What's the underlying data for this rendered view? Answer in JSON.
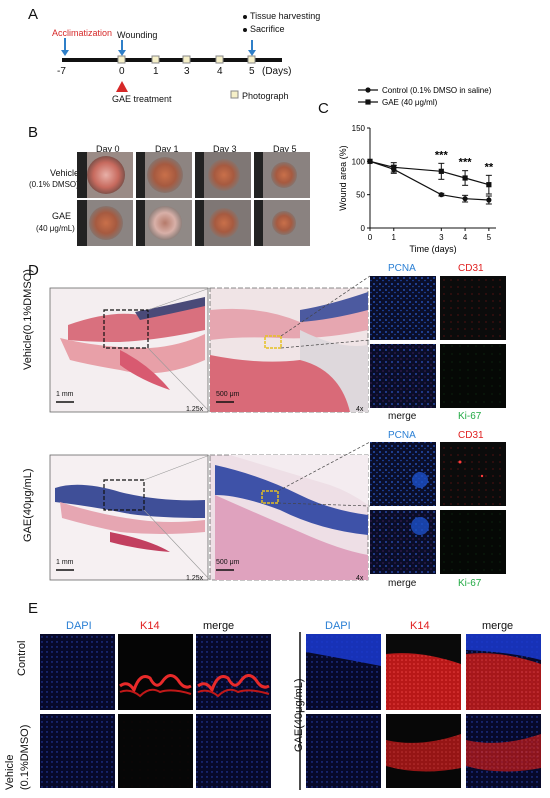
{
  "panel_labels": {
    "a": "A",
    "b": "B",
    "c": "C",
    "d": "D",
    "e": "E"
  },
  "timeline": {
    "acclimatization": "Acclimatization",
    "wounding": "Wounding",
    "tissue_harvesting": "Tissue harvesting",
    "sacrifice": "Sacrifice",
    "ticks": [
      "-7",
      "0",
      "1",
      "3",
      "4",
      "5"
    ],
    "unit": "(Days)",
    "treatment": "GAE treatment",
    "photograph": "Photograph",
    "accent_color": "#d62828"
  },
  "wound_photos": {
    "days": [
      "Day 0",
      "Day 1",
      "Day 3",
      "Day 5"
    ],
    "rows": [
      {
        "line1": "Vehicle",
        "line2": "(0.1% DMSO)"
      },
      {
        "line1": "GAE",
        "line2": "(40 μg/mL)"
      }
    ]
  },
  "chart_data": {
    "type": "line",
    "xlabel": "Time (days)",
    "ylabel": "Wound area (%)",
    "x": [
      0,
      1,
      3,
      4,
      5
    ],
    "ylim": [
      0,
      150
    ],
    "yticks": [
      "0",
      "50",
      "100",
      "150"
    ],
    "xticks": [
      "0",
      "1",
      "3",
      "4",
      "5"
    ],
    "legend_position": "top-right",
    "series": [
      {
        "name": "Control (0.1% DMSO in saline)",
        "marker": "circle",
        "values": [
          100,
          88,
          50,
          44,
          42
        ],
        "errors": [
          0,
          6,
          2,
          5,
          6
        ]
      },
      {
        "name": "GAE (40 μg/ml)",
        "marker": "square",
        "values": [
          100,
          91,
          85,
          75,
          65
        ],
        "errors": [
          0,
          7,
          12,
          11,
          14
        ]
      }
    ],
    "significance": [
      {
        "x": 3,
        "label": "***"
      },
      {
        "x": 4,
        "label": "***"
      },
      {
        "x": 5,
        "label": "**"
      }
    ]
  },
  "histology": {
    "rows": [
      {
        "label": "Vehicle(0.1%DMSO)",
        "scale1": "1 mm",
        "mag1": "1.25x",
        "scale2": "500 μm",
        "mag2": "4x",
        "ifl": [
          "PCNA",
          "CD31",
          "merge",
          "Ki-67"
        ]
      },
      {
        "label": "GAE(40μg/mL)",
        "scale1": "1 mm",
        "mag1": "1.25x",
        "scale2": "500 μm",
        "mag2": "4x",
        "ifl": [
          "PCNA",
          "CD31",
          "merge",
          "Ki-67"
        ]
      }
    ],
    "colors": {
      "pcna": "#2a7fd4",
      "cd31": "#e02020",
      "ki67": "#22aa44"
    }
  },
  "panel_e": {
    "left_rows": [
      "Control",
      "Vehicle",
      "(0.1%DMSO)"
    ],
    "right_row": "GAE(40μg/mL)",
    "headers": [
      "DAPI",
      "K14",
      "merge"
    ],
    "colors": {
      "dapi": "#2a7fd4",
      "k14": "#e02020"
    }
  }
}
